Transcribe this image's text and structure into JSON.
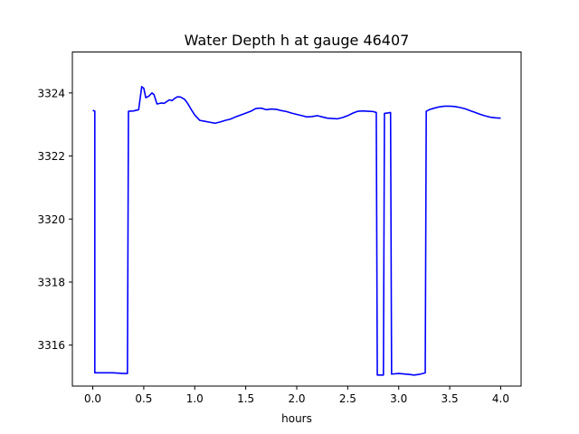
{
  "chart_data": {
    "type": "line",
    "title": "Water Depth h at gauge 46407",
    "xlabel": "hours",
    "ylabel": "",
    "xlim": [
      -0.2,
      4.2
    ],
    "ylim": [
      3314.7,
      3325.3
    ],
    "xticks": [
      0.0,
      0.5,
      1.0,
      1.5,
      2.0,
      2.5,
      3.0,
      3.5,
      4.0
    ],
    "xtick_labels": [
      "0.0",
      "0.5",
      "1.0",
      "1.5",
      "2.0",
      "2.5",
      "3.0",
      "3.5",
      "4.0"
    ],
    "yticks": [
      3316,
      3318,
      3320,
      3322,
      3324
    ],
    "ytick_labels": [
      "3316",
      "3318",
      "3320",
      "3322",
      "3324"
    ],
    "grid": false,
    "series": [
      {
        "color": "#0000ff",
        "points": [
          [
            0.0,
            3323.45
          ],
          [
            0.02,
            3323.42
          ],
          [
            0.02,
            3315.12
          ],
          [
            0.1,
            3315.12
          ],
          [
            0.2,
            3315.12
          ],
          [
            0.3,
            3315.1
          ],
          [
            0.34,
            3315.1
          ],
          [
            0.35,
            3323.42
          ],
          [
            0.4,
            3323.43
          ],
          [
            0.45,
            3323.47
          ],
          [
            0.48,
            3324.2
          ],
          [
            0.5,
            3324.15
          ],
          [
            0.52,
            3323.85
          ],
          [
            0.55,
            3323.9
          ],
          [
            0.58,
            3324.0
          ],
          [
            0.6,
            3323.95
          ],
          [
            0.63,
            3323.65
          ],
          [
            0.67,
            3323.68
          ],
          [
            0.7,
            3323.67
          ],
          [
            0.75,
            3323.78
          ],
          [
            0.78,
            3323.76
          ],
          [
            0.8,
            3323.82
          ],
          [
            0.83,
            3323.88
          ],
          [
            0.86,
            3323.87
          ],
          [
            0.9,
            3323.8
          ],
          [
            0.93,
            3323.67
          ],
          [
            0.97,
            3323.45
          ],
          [
            1.0,
            3323.3
          ],
          [
            1.05,
            3323.13
          ],
          [
            1.1,
            3323.1
          ],
          [
            1.15,
            3323.07
          ],
          [
            1.2,
            3323.04
          ],
          [
            1.25,
            3323.08
          ],
          [
            1.3,
            3323.13
          ],
          [
            1.35,
            3323.17
          ],
          [
            1.4,
            3323.24
          ],
          [
            1.45,
            3323.3
          ],
          [
            1.5,
            3323.36
          ],
          [
            1.55,
            3323.42
          ],
          [
            1.6,
            3323.51
          ],
          [
            1.65,
            3323.52
          ],
          [
            1.7,
            3323.47
          ],
          [
            1.75,
            3323.49
          ],
          [
            1.8,
            3323.48
          ],
          [
            1.85,
            3323.44
          ],
          [
            1.9,
            3323.41
          ],
          [
            1.95,
            3323.36
          ],
          [
            2.0,
            3323.32
          ],
          [
            2.05,
            3323.28
          ],
          [
            2.1,
            3323.24
          ],
          [
            2.15,
            3323.25
          ],
          [
            2.2,
            3323.28
          ],
          [
            2.25,
            3323.24
          ],
          [
            2.3,
            3323.2
          ],
          [
            2.35,
            3323.19
          ],
          [
            2.4,
            3323.18
          ],
          [
            2.45,
            3323.22
          ],
          [
            2.5,
            3323.28
          ],
          [
            2.55,
            3323.36
          ],
          [
            2.6,
            3323.42
          ],
          [
            2.65,
            3323.43
          ],
          [
            2.7,
            3323.42
          ],
          [
            2.75,
            3323.41
          ],
          [
            2.78,
            3323.38
          ],
          [
            2.79,
            3315.05
          ],
          [
            2.82,
            3315.05
          ],
          [
            2.85,
            3315.05
          ],
          [
            2.86,
            3323.35
          ],
          [
            2.9,
            3323.37
          ],
          [
            2.92,
            3323.38
          ],
          [
            2.93,
            3315.08
          ],
          [
            3.0,
            3315.1
          ],
          [
            3.1,
            3315.07
          ],
          [
            3.15,
            3315.05
          ],
          [
            3.2,
            3315.07
          ],
          [
            3.26,
            3315.12
          ],
          [
            3.27,
            3323.42
          ],
          [
            3.3,
            3323.47
          ],
          [
            3.35,
            3323.52
          ],
          [
            3.4,
            3323.56
          ],
          [
            3.45,
            3323.58
          ],
          [
            3.5,
            3323.58
          ],
          [
            3.55,
            3323.57
          ],
          [
            3.6,
            3323.54
          ],
          [
            3.65,
            3323.5
          ],
          [
            3.7,
            3323.44
          ],
          [
            3.75,
            3323.38
          ],
          [
            3.8,
            3323.32
          ],
          [
            3.85,
            3323.27
          ],
          [
            3.9,
            3323.23
          ],
          [
            3.95,
            3323.21
          ],
          [
            4.0,
            3323.2
          ]
        ]
      }
    ]
  }
}
